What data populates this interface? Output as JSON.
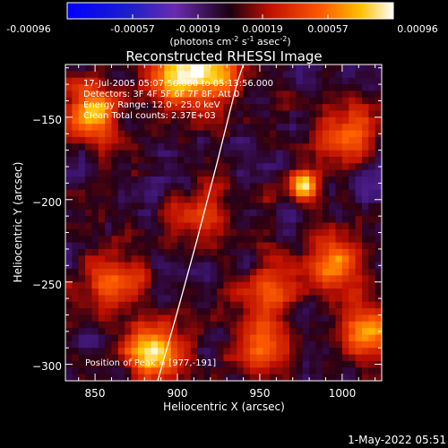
{
  "colorbar": {
    "ticks": [
      "-0.00096",
      "-0.00057",
      "-0.00019",
      "0.00019",
      "0.00057",
      "0.00096"
    ],
    "units_prefix": "(photons cm",
    "units_exp1": "-2",
    "units_mid": " s",
    "units_exp2": "-1",
    "units_mid2": " asec",
    "units_exp3": "-2",
    "units_suffix": ")"
  },
  "chart_data": {
    "type": "heatmap",
    "title": "Reconstructed RHESSI Image",
    "xlabel": "Heliocentric X (arcsec)",
    "ylabel": "Heliocentric Y (arcsec)",
    "xlim": [
      832,
      1024
    ],
    "ylim": [
      -310,
      -118
    ],
    "xticks": [
      850,
      900,
      950,
      1000
    ],
    "yticks": [
      -300,
      -250,
      -200,
      -150
    ],
    "ytick_labels": [
      "−300",
      "−250",
      "−200",
      "−150"
    ],
    "colorbar_range": [
      -0.00096,
      0.00096
    ],
    "limb_curve": [
      [
        888,
        -310
      ],
      [
        900,
        -268
      ],
      [
        912,
        -224
      ],
      [
        924,
        -178
      ],
      [
        936,
        -130
      ],
      [
        940,
        -118
      ]
    ],
    "annotations": [
      "17-Jul-2005 05:07:56.000 to 05:13:56.000",
      "Detectors: 3F 4F 5F 6F 7F 8F, Att 0",
      "Energy Range: 12.0 - 25.0 keV",
      "Clean    Total counts: 2.37E+03"
    ],
    "peak_label": "Position of Peak = [977,-191]",
    "peak": [
      977,
      -191
    ],
    "hot_spots": [
      {
        "x": 977,
        "y": -191,
        "v": 0.00096
      },
      {
        "x": 886,
        "y": -292,
        "v": 0.0009
      },
      {
        "x": 848,
        "y": -148,
        "v": 0.00075
      },
      {
        "x": 898,
        "y": -125,
        "v": 0.0007
      },
      {
        "x": 920,
        "y": -124,
        "v": 0.0007
      },
      {
        "x": 1002,
        "y": -160,
        "v": 0.0006
      },
      {
        "x": 995,
        "y": -238,
        "v": 0.00062
      },
      {
        "x": 1015,
        "y": -282,
        "v": 0.00058
      },
      {
        "x": 950,
        "y": -290,
        "v": 0.00055
      },
      {
        "x": 862,
        "y": -250,
        "v": 0.0005
      },
      {
        "x": 955,
        "y": -255,
        "v": 0.00045
      },
      {
        "x": 915,
        "y": -210,
        "v": 0.0004
      }
    ]
  },
  "footer": {
    "date": "1-May-2022 05:51"
  }
}
